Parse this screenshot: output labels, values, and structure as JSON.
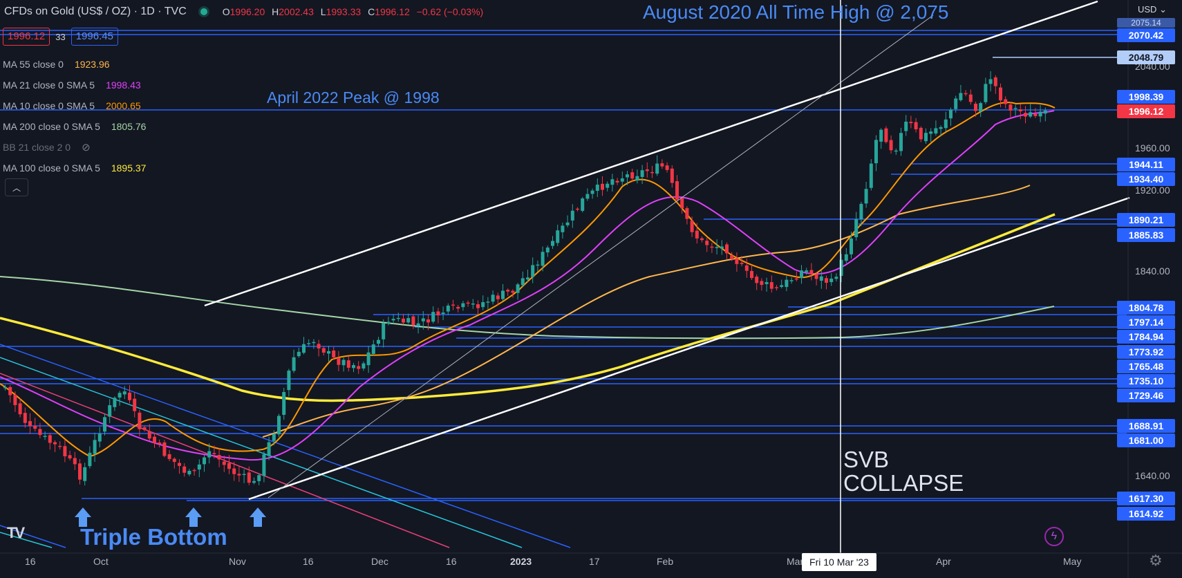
{
  "header": {
    "title": "CFDs on Gold (US$ / OZ) · 1D · TVC",
    "ohlc": [
      {
        "key": "O",
        "value": "1996.20"
      },
      {
        "key": "H",
        "value": "2002.43"
      },
      {
        "key": "L",
        "value": "1993.33"
      },
      {
        "key": "C",
        "value": "1996.12"
      },
      {
        "key": "",
        "value": "−0.62 (−0.03%)"
      }
    ],
    "sell_price": "1996.12",
    "spread": "33",
    "buy_price": "1996.45",
    "currency": "USD"
  },
  "indicators": [
    {
      "label": "MA 55 close 0",
      "value": "1923.96",
      "color": "#ffb74d"
    },
    {
      "label": "MA 21 close 0 SMA 5",
      "value": "1998.43",
      "color": "#e040fb"
    },
    {
      "label": "MA 10 close 0 SMA 5",
      "value": "2000.65",
      "color": "#ff9800"
    },
    {
      "label": "MA 200 close 0 SMA 5",
      "value": "1805.76",
      "color": "#a5d6a7"
    },
    {
      "label": "BB 21 close 2 0",
      "value": "",
      "color": "#6a6d78"
    },
    {
      "label": "MA 100 close 0 SMA 5",
      "value": "1895.37",
      "color": "#ffeb3b"
    }
  ],
  "annotations": {
    "ath": "August 2020 All Time High @ 2,075",
    "april_peak": "April 2022 Peak @ 1998",
    "triple_bottom": "Triple Bottom",
    "svb_line1": "SVB",
    "svb_line2": "COLLAPSE"
  },
  "x_axis": {
    "labels": [
      "16",
      "Oct",
      "Nov",
      "16",
      "Dec",
      "16",
      "2023",
      "17",
      "Feb",
      "Mar",
      "Apr",
      "May"
    ],
    "cursor_label": "Fri 10 Mar '23"
  },
  "y_axis": {
    "ticks": [
      "2040.00",
      "1960.00",
      "1920.00",
      "1840.00",
      "1640.00"
    ],
    "faint_label": "2075.14",
    "levels": [
      {
        "value": "2070.42",
        "style": "blue"
      },
      {
        "value": "2048.79",
        "style": "light"
      },
      {
        "value": "1998.39",
        "style": "blue"
      },
      {
        "value": "1996.12",
        "style": "current"
      },
      {
        "value": "1944.11",
        "style": "blue"
      },
      {
        "value": "1934.40",
        "style": "blue"
      },
      {
        "value": "1890.21",
        "style": "blue"
      },
      {
        "value": "1885.83",
        "style": "blue"
      },
      {
        "value": "1804.78",
        "style": "blue"
      },
      {
        "value": "1797.14",
        "style": "blue"
      },
      {
        "value": "1784.94",
        "style": "blue"
      },
      {
        "value": "1773.92",
        "style": "blue"
      },
      {
        "value": "1765.48",
        "style": "blue"
      },
      {
        "value": "1735.10",
        "style": "blue"
      },
      {
        "value": "1729.46",
        "style": "blue"
      },
      {
        "value": "1688.91",
        "style": "blue"
      },
      {
        "value": "1681.00",
        "style": "blue"
      },
      {
        "value": "1617.30",
        "style": "blue"
      },
      {
        "value": "1614.92",
        "style": "blue"
      }
    ]
  },
  "colors": {
    "background": "#131722",
    "up_candle": "#26a69a",
    "down_candle": "#f23645",
    "level_line": "#2962ff",
    "annotation_blue": "#4a8af4"
  }
}
